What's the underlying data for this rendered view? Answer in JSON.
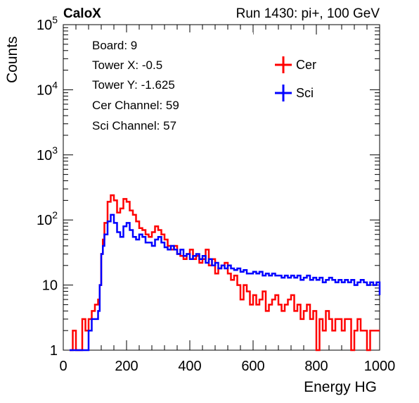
{
  "header": {
    "left_label": "CaloX",
    "right_label": "Run 1430: pi+, 100 GeV"
  },
  "info_box": {
    "lines": [
      "Board: 9",
      "Tower X: -0.5",
      "Tower Y: -1.625",
      "Cer Channel: 59",
      "Sci Channel: 57"
    ]
  },
  "chart_data": {
    "type": "line",
    "title": "",
    "xlabel": "Energy HG",
    "ylabel": "Counts",
    "xlim": [
      0,
      1000
    ],
    "ylim": [
      1,
      100000
    ],
    "y_scale": "log",
    "grid": false,
    "legend_position": "top-right",
    "x_ticks": [
      0,
      200,
      400,
      600,
      800,
      1000
    ],
    "x_tick_labels": [
      "0",
      "200",
      "400",
      "600",
      "800",
      "1000"
    ],
    "y_ticks": [
      {
        "value": 1,
        "label": "1",
        "exp": ""
      },
      {
        "value": 10,
        "label": "10",
        "exp": ""
      },
      {
        "value": 100,
        "label": "10",
        "exp": "2"
      },
      {
        "value": 1000,
        "label": "10",
        "exp": "3"
      },
      {
        "value": 10000,
        "label": "10",
        "exp": "4"
      },
      {
        "value": 100000,
        "label": "10",
        "exp": "5"
      }
    ],
    "series": [
      {
        "name": "Cer",
        "color": "#ff0000",
        "x": [
          20,
          30,
          40,
          50,
          60,
          70,
          80,
          90,
          100,
          110,
          115,
          120,
          125,
          130,
          140,
          150,
          160,
          170,
          180,
          190,
          200,
          210,
          220,
          230,
          240,
          250,
          260,
          270,
          280,
          290,
          300,
          310,
          320,
          330,
          340,
          350,
          360,
          370,
          380,
          390,
          400,
          410,
          420,
          430,
          440,
          450,
          460,
          470,
          480,
          490,
          500,
          510,
          520,
          530,
          540,
          550,
          560,
          570,
          580,
          590,
          600,
          610,
          620,
          630,
          640,
          650,
          660,
          670,
          680,
          690,
          700,
          710,
          720,
          730,
          740,
          750,
          760,
          770,
          780,
          790,
          800,
          810,
          820,
          830,
          840,
          850,
          860,
          870,
          880,
          890,
          900,
          910,
          920,
          930,
          940,
          950,
          960,
          970,
          980,
          990,
          1000
        ],
        "values": [
          1,
          2,
          1,
          1,
          3,
          2,
          3,
          4,
          5,
          6,
          10,
          30,
          50,
          90,
          190,
          240,
          200,
          130,
          150,
          210,
          190,
          140,
          120,
          95,
          75,
          70,
          60,
          55,
          65,
          80,
          70,
          60,
          50,
          40,
          35,
          40,
          30,
          28,
          25,
          30,
          35,
          25,
          28,
          22,
          25,
          35,
          20,
          25,
          15,
          18,
          20,
          22,
          15,
          12,
          14,
          10,
          6,
          10,
          8,
          5,
          7,
          5,
          6,
          8,
          4,
          5,
          6,
          7,
          5,
          4,
          5,
          6,
          7,
          4,
          5,
          3,
          4,
          5,
          3,
          4,
          1,
          3,
          2,
          4,
          3,
          2,
          3,
          3,
          2,
          3,
          3,
          1,
          2,
          3,
          2,
          2,
          1,
          2,
          2,
          2,
          2
        ]
      },
      {
        "name": "Sci",
        "color": "#0000ff",
        "x": [
          20,
          30,
          40,
          50,
          60,
          70,
          80,
          90,
          100,
          110,
          115,
          120,
          125,
          130,
          140,
          150,
          160,
          170,
          180,
          190,
          200,
          210,
          220,
          230,
          240,
          250,
          260,
          270,
          280,
          290,
          300,
          310,
          320,
          330,
          340,
          350,
          360,
          370,
          380,
          390,
          400,
          410,
          420,
          430,
          440,
          450,
          460,
          470,
          480,
          490,
          500,
          510,
          520,
          530,
          540,
          550,
          560,
          570,
          580,
          590,
          600,
          610,
          620,
          630,
          640,
          650,
          660,
          670,
          680,
          690,
          700,
          710,
          720,
          730,
          740,
          750,
          760,
          770,
          780,
          790,
          800,
          810,
          820,
          830,
          840,
          850,
          860,
          870,
          880,
          890,
          900,
          910,
          920,
          930,
          940,
          950,
          960,
          970,
          980,
          990,
          1000
        ],
        "values": [
          1,
          1,
          1,
          1,
          1,
          1,
          2,
          3,
          3,
          4,
          10,
          30,
          40,
          60,
          95,
          120,
          90,
          65,
          55,
          80,
          90,
          70,
          55,
          50,
          60,
          55,
          45,
          45,
          40,
          50,
          55,
          45,
          38,
          35,
          40,
          35,
          30,
          35,
          28,
          30,
          25,
          28,
          30,
          25,
          28,
          22,
          25,
          20,
          22,
          18,
          20,
          18,
          20,
          18,
          17,
          18,
          16,
          17,
          15,
          15,
          16,
          15,
          16,
          14,
          15,
          14,
          15,
          14,
          14,
          13,
          14,
          13,
          14,
          13,
          14,
          12,
          13,
          14,
          12,
          13,
          12,
          13,
          11,
          12,
          13,
          12,
          11,
          12,
          11,
          12,
          11,
          12,
          10,
          11,
          12,
          11,
          10,
          11,
          10,
          11,
          7
        ]
      }
    ]
  }
}
